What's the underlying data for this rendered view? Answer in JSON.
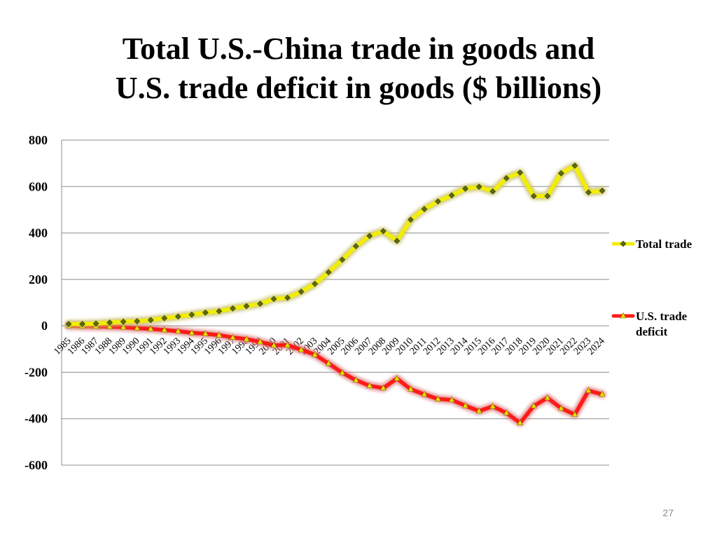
{
  "slide": {
    "title_line1": "Total U.S.-China trade in goods and",
    "title_line2": "U.S. trade deficit in goods ($ billions)",
    "page_number": "27"
  },
  "colors": {
    "total_trade": "#f2ee00",
    "total_trade_glow": "#c8c060",
    "deficit": "#ff1a1a",
    "deficit_glow": "#e08080",
    "gridline": "#8c8c8c",
    "marker_trade_fill": "#5a6a10",
    "marker_deficit_fill": "#e8e000"
  },
  "chart_data": {
    "type": "line",
    "title": "Total U.S.-China trade in goods and U.S. trade deficit in goods ($ billions)",
    "xlabel": "",
    "ylabel": "",
    "ylim": [
      -600,
      800
    ],
    "yticks": [
      800,
      600,
      400,
      200,
      0,
      -200,
      -400,
      -600
    ],
    "grid": true,
    "legend_position": "right",
    "categories": [
      "1985",
      "1986",
      "1987",
      "1988",
      "1989",
      "1990",
      "1991",
      "1992",
      "1993",
      "1994",
      "1995",
      "1996",
      "1997",
      "1998",
      "1999",
      "2000",
      "2001",
      "2002",
      "2003",
      "2004",
      "2005",
      "2006",
      "2007",
      "2008",
      "2009",
      "2010",
      "2011",
      "2012",
      "2013",
      "2014",
      "2015",
      "2016",
      "2017",
      "2018",
      "2019",
      "2020",
      "2021",
      "2022",
      "2023",
      "2024"
    ],
    "series": [
      {
        "name": "Total trade",
        "marker": "diamond",
        "values": [
          8,
          8,
          10,
          14,
          18,
          20,
          25,
          33,
          40,
          48,
          57,
          63,
          75,
          85,
          95,
          116,
          121,
          147,
          181,
          231,
          285,
          343,
          387,
          408,
          366,
          457,
          503,
          536,
          562,
          591,
          599,
          579,
          636,
          660,
          559,
          559,
          657,
          690,
          575,
          582
        ]
      },
      {
        "name": "U.S. trade deficit",
        "marker": "triangle",
        "values": [
          0,
          -2,
          -3,
          -4,
          -6,
          -10,
          -13,
          -18,
          -23,
          -30,
          -34,
          -40,
          -50,
          -57,
          -69,
          -84,
          -83,
          -103,
          -124,
          -162,
          -202,
          -234,
          -258,
          -268,
          -227,
          -273,
          -295,
          -315,
          -319,
          -344,
          -367,
          -347,
          -375,
          -418,
          -345,
          -310,
          -355,
          -382,
          -279,
          -295
        ]
      }
    ]
  }
}
